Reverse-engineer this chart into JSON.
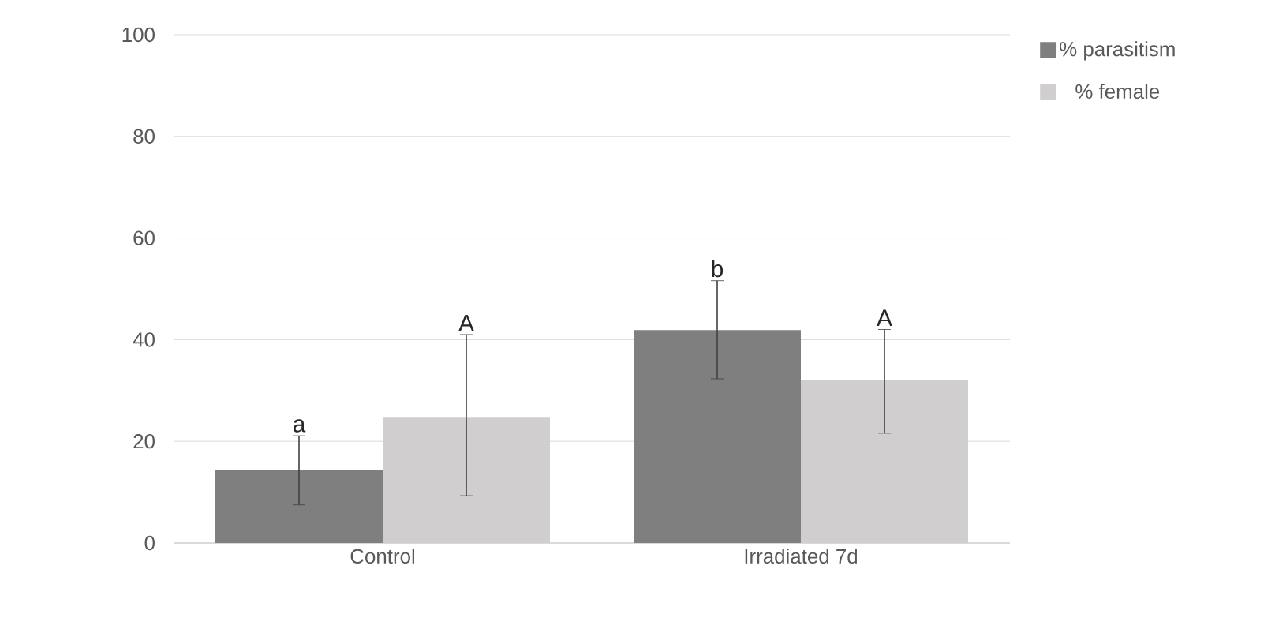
{
  "chart_data": {
    "type": "bar",
    "categories": [
      "Control",
      "Irradiated 7d"
    ],
    "series": [
      {
        "name": "% parasitism",
        "color": "#7f7f7f",
        "values": [
          14.3,
          41.9
        ],
        "errors": [
          [
            7.5,
            21.1
          ],
          [
            32.3,
            51.6
          ]
        ]
      },
      {
        "name": "% female",
        "color": "#d0cece",
        "values": [
          24.8,
          32
        ],
        "errors": [
          [
            9.3,
            41
          ],
          [
            21.6,
            42
          ]
        ]
      }
    ],
    "ylim": [
      0,
      100
    ],
    "yticks": [
      0,
      20,
      40,
      60,
      80,
      100
    ],
    "grid": "y",
    "legend": "right",
    "annotations": [
      "a",
      "A",
      "b",
      "A"
    ]
  }
}
